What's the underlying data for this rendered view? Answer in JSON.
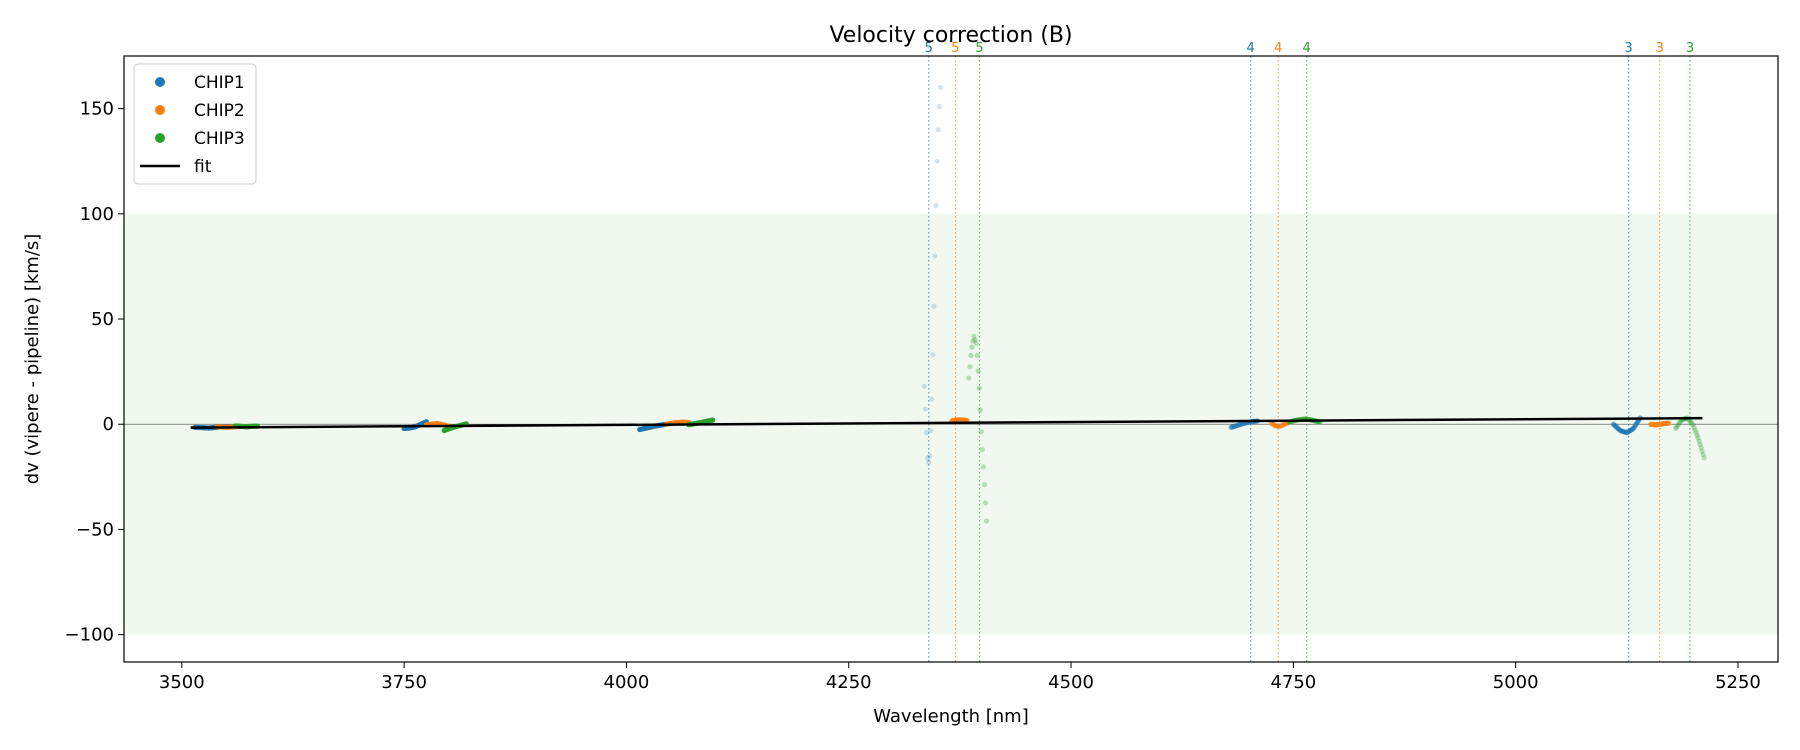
{
  "chart_data": {
    "type": "scatter",
    "title": "Velocity correction (B)",
    "xlabel": "Wavelength [nm]",
    "ylabel": "dv (vipere - pipeline) [km/s]",
    "xlim": [
      3435,
      5295
    ],
    "ylim": [
      -113,
      175
    ],
    "xticks": [
      3500,
      3750,
      4000,
      4250,
      4500,
      4750,
      5000,
      5250
    ],
    "xtick_labels": [
      "3500",
      "3750",
      "4000",
      "4250",
      "4500",
      "4750",
      "5000",
      "5250"
    ],
    "yticks": [
      -100,
      -50,
      0,
      50,
      100,
      150
    ],
    "ytick_labels": [
      "−100",
      "−50",
      "0",
      "50",
      "100",
      "150"
    ],
    "band": [
      -100,
      100
    ],
    "band_color": "#2ca02c",
    "zero_line": 0,
    "series_colors": {
      "CHIP1": "#1f77b4",
      "CHIP2": "#ff7f0e",
      "CHIP3": "#2ca02c",
      "fit": "#000000"
    },
    "legend": {
      "position": "upper-left",
      "entries": [
        {
          "label": "CHIP1",
          "marker": "dot",
          "color": "#1f77b4"
        },
        {
          "label": "CHIP2",
          "marker": "dot",
          "color": "#ff7f0e"
        },
        {
          "label": "CHIP3",
          "marker": "dot",
          "color": "#2ca02c"
        },
        {
          "label": "fit",
          "marker": "line",
          "color": "#000000"
        }
      ]
    },
    "order_markers": [
      {
        "label": "5",
        "x": 4340,
        "chip": "CHIP1"
      },
      {
        "label": "5",
        "x": 4370,
        "chip": "CHIP2"
      },
      {
        "label": "5",
        "x": 4397,
        "chip": "CHIP3"
      },
      {
        "label": "4",
        "x": 4702,
        "chip": "CHIP1"
      },
      {
        "label": "4",
        "x": 4733,
        "chip": "CHIP2"
      },
      {
        "label": "4",
        "x": 4765,
        "chip": "CHIP3"
      },
      {
        "label": "3",
        "x": 5127,
        "chip": "CHIP1"
      },
      {
        "label": "3",
        "x": 5162,
        "chip": "CHIP2"
      },
      {
        "label": "3",
        "x": 5196,
        "chip": "CHIP3"
      }
    ],
    "segments": [
      {
        "chip": "CHIP1",
        "x0": 3515,
        "x1": 3545,
        "y": [
          -1.5,
          -1.6,
          -1.8,
          -1.5,
          -1.2
        ],
        "alpha": 1.0
      },
      {
        "chip": "CHIP2",
        "x0": 3540,
        "x1": 3565,
        "y": [
          -1.2,
          -1.3,
          -1.4,
          -1.2,
          -1.0
        ],
        "alpha": 1.0
      },
      {
        "chip": "CHIP3",
        "x0": 3560,
        "x1": 3585,
        "y": [
          -0.8,
          -1.0,
          -1.2,
          -1.0,
          -0.9
        ],
        "alpha": 1.0
      },
      {
        "chip": "CHIP1",
        "x0": 3750,
        "x1": 3775,
        "y": [
          -2.0,
          -1.8,
          -1.2,
          0.0,
          1.2
        ],
        "alpha": 1.0
      },
      {
        "chip": "CHIP2",
        "x0": 3775,
        "x1": 3800,
        "y": [
          -0.3,
          0.0,
          0.3,
          -0.2,
          -1.0
        ],
        "alpha": 1.0
      },
      {
        "chip": "CHIP3",
        "x0": 3795,
        "x1": 3820,
        "y": [
          -3.0,
          -2.0,
          -1.2,
          -0.5,
          0.2
        ],
        "alpha": 1.0
      },
      {
        "chip": "CHIP1",
        "x0": 4015,
        "x1": 4045,
        "y": [
          -2.5,
          -1.8,
          -1.0,
          -0.5,
          0.0
        ],
        "alpha": 1.0
      },
      {
        "chip": "CHIP2",
        "x0": 4045,
        "x1": 4070,
        "y": [
          0.0,
          0.5,
          0.8,
          1.0,
          0.8
        ],
        "alpha": 1.0
      },
      {
        "chip": "CHIP3",
        "x0": 4070,
        "x1": 4097,
        "y": [
          -0.2,
          0.3,
          0.8,
          1.4,
          2.0
        ],
        "alpha": 1.0
      },
      {
        "chip": "CHIP1",
        "x0": 4335,
        "x1": 4353,
        "y": [
          18,
          0,
          -20,
          -15,
          5,
          40,
          80,
          120,
          145,
          160
        ],
        "alpha": 0.2
      },
      {
        "chip": "CHIP2",
        "x0": 4366,
        "x1": 4383,
        "y": [
          1.6,
          2.0,
          2.1,
          2.0,
          1.8
        ],
        "alpha": 0.8
      },
      {
        "chip": "CHIP3",
        "x0": 4385,
        "x1": 4405,
        "y": [
          22,
          35,
          42,
          38,
          20,
          -5,
          -25,
          -46
        ],
        "alpha": 0.3
      },
      {
        "chip": "CHIP1",
        "x0": 4680,
        "x1": 4710,
        "y": [
          -1.5,
          -0.5,
          0.5,
          1.2,
          1.6
        ],
        "alpha": 0.5
      },
      {
        "chip": "CHIP2",
        "x0": 4725,
        "x1": 4745,
        "y": [
          0.5,
          -0.8,
          -1.0,
          0.0,
          1.0
        ],
        "alpha": 0.5
      },
      {
        "chip": "CHIP3",
        "x0": 4745,
        "x1": 4780,
        "y": [
          1.0,
          2.0,
          2.5,
          2.0,
          1.0
        ],
        "alpha": 0.5
      },
      {
        "chip": "CHIP1",
        "x0": 5110,
        "x1": 5140,
        "y": [
          0.0,
          -3.0,
          -4.0,
          -2.0,
          3.0
        ],
        "alpha": 0.6
      },
      {
        "chip": "CHIP2",
        "x0": 5152,
        "x1": 5172,
        "y": [
          0.0,
          -0.3,
          0.0,
          0.3,
          0.5
        ],
        "alpha": 0.7
      },
      {
        "chip": "CHIP3",
        "x0": 5180,
        "x1": 5212,
        "y": [
          -2.0,
          2.0,
          3.0,
          0.0,
          -7.0,
          -16.0
        ],
        "alpha": 0.3
      }
    ],
    "fit": {
      "x": [
        3510,
        5210
      ],
      "y": [
        -1.6,
        2.9
      ]
    }
  }
}
